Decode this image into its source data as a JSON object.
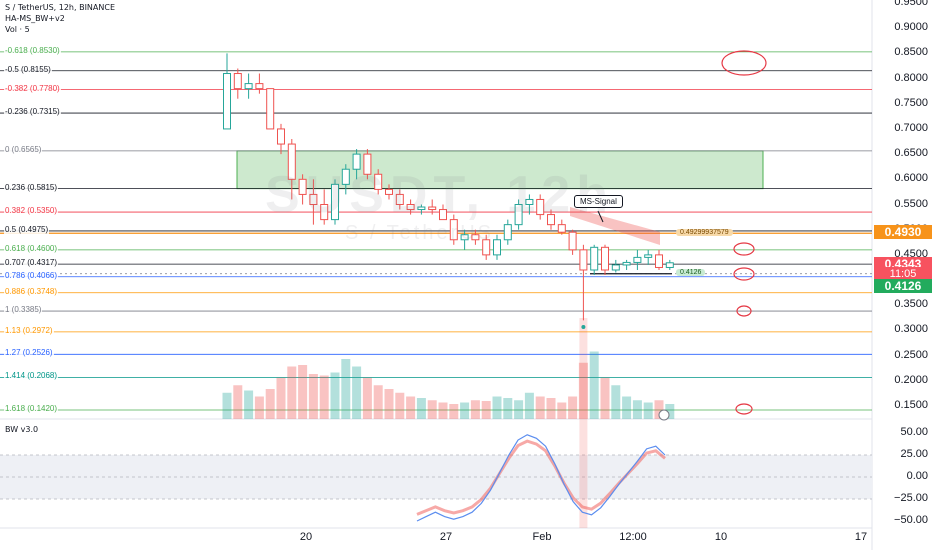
{
  "header": {
    "symbol_line": "S / TetherUS, 12h, BINANCE",
    "indicator1": "HA-MS_BW+v2",
    "indicator2": "Vol · 5",
    "sub_indicator": "BW v3.0"
  },
  "watermark": {
    "symbol": "SUSDT, 12h",
    "pair": "S / TetherUS"
  },
  "callout": {
    "text": "MS-Signal"
  },
  "line_labels": {
    "upper": "0.49299937579",
    "lower": "0.4126"
  },
  "fib_levels": [
    {
      "label": "-0.618 (0.8530)",
      "value": 0.853,
      "color": "#4caf50"
    },
    {
      "label": "-0.5 (0.8155)",
      "value": 0.8155,
      "color": "#131722"
    },
    {
      "label": "-0.382 (0.7780)",
      "value": 0.778,
      "color": "#f23645"
    },
    {
      "label": "-0.236 (0.7315)",
      "value": 0.7315,
      "color": "#131722"
    },
    {
      "label": "0 (0.6565)",
      "value": 0.6565,
      "color": "#787b86"
    },
    {
      "label": "0.236 (0.5815)",
      "value": 0.5815,
      "color": "#131722"
    },
    {
      "label": "0.382 (0.5350)",
      "value": 0.535,
      "color": "#f23645"
    },
    {
      "label": "0.5 (0.4975)",
      "value": 0.4975,
      "color": "#131722"
    },
    {
      "label": "0.618 (0.4600)",
      "value": 0.46,
      "color": "#4caf50"
    },
    {
      "label": "0.707 (0.4317)",
      "value": 0.4317,
      "color": "#131722"
    },
    {
      "label": "0.786 (0.4066)",
      "value": 0.4066,
      "color": "#2962ff"
    },
    {
      "label": "0.886 (0.3748)",
      "value": 0.3748,
      "color": "#ff9800"
    },
    {
      "label": "1 (0.3385)",
      "value": 0.3385,
      "color": "#787b86"
    },
    {
      "label": "1.13 (0.2972)",
      "value": 0.2972,
      "color": "#ff9800"
    },
    {
      "label": "1.27 (0.2526)",
      "value": 0.2526,
      "color": "#2962ff"
    },
    {
      "label": "1.414 (0.2068)",
      "value": 0.2068,
      "color": "#009688"
    },
    {
      "label": "1.618 (0.1420)",
      "value": 0.142,
      "color": "#4caf50"
    }
  ],
  "price_axis": {
    "ticks": [
      "0.9500",
      "0.9000",
      "0.8500",
      "0.8000",
      "0.7500",
      "0.7000",
      "0.6500",
      "0.6000",
      "0.5500",
      "0.5000",
      "0.4500",
      "0.4000",
      "0.3500",
      "0.3000",
      "0.2500",
      "0.2000",
      "0.1500"
    ],
    "tags": {
      "orange": "0.4930",
      "red_price": "0.4343",
      "red_time": "11:05",
      "green": "0.4126"
    }
  },
  "osc_axis": {
    "ticks": [
      "50.00",
      "25.00",
      "0.00",
      "−25.00",
      "−50.00"
    ]
  },
  "time_axis": {
    "ticks": [
      "20",
      "27",
      "Feb",
      "12:00",
      "10",
      "17"
    ]
  },
  "colors": {
    "up": "#26a69a",
    "down": "#ef5350",
    "zone": "#4caf50",
    "accent": "#f7931a"
  },
  "chart_data": {
    "type": "candlestick",
    "interval": "12h",
    "ylim": [
      0.1,
      0.95
    ],
    "candles": [
      {
        "o": 0.7,
        "h": 0.85,
        "l": 0.7,
        "c": 0.81
      },
      {
        "o": 0.81,
        "h": 0.82,
        "l": 0.76,
        "c": 0.78
      },
      {
        "o": 0.78,
        "h": 0.81,
        "l": 0.76,
        "c": 0.79
      },
      {
        "o": 0.79,
        "h": 0.81,
        "l": 0.77,
        "c": 0.78
      },
      {
        "o": 0.78,
        "h": 0.78,
        "l": 0.7,
        "c": 0.7
      },
      {
        "o": 0.7,
        "h": 0.71,
        "l": 0.65,
        "c": 0.67
      },
      {
        "o": 0.67,
        "h": 0.68,
        "l": 0.56,
        "c": 0.6
      },
      {
        "o": 0.6,
        "h": 0.61,
        "l": 0.55,
        "c": 0.57
      },
      {
        "o": 0.57,
        "h": 0.6,
        "l": 0.51,
        "c": 0.55
      },
      {
        "o": 0.55,
        "h": 0.58,
        "l": 0.51,
        "c": 0.52
      },
      {
        "o": 0.52,
        "h": 0.6,
        "l": 0.51,
        "c": 0.59
      },
      {
        "o": 0.59,
        "h": 0.63,
        "l": 0.57,
        "c": 0.62
      },
      {
        "o": 0.62,
        "h": 0.66,
        "l": 0.6,
        "c": 0.65
      },
      {
        "o": 0.65,
        "h": 0.66,
        "l": 0.6,
        "c": 0.61
      },
      {
        "o": 0.61,
        "h": 0.62,
        "l": 0.57,
        "c": 0.58
      },
      {
        "o": 0.58,
        "h": 0.59,
        "l": 0.56,
        "c": 0.57
      },
      {
        "o": 0.57,
        "h": 0.58,
        "l": 0.54,
        "c": 0.55
      },
      {
        "o": 0.55,
        "h": 0.56,
        "l": 0.53,
        "c": 0.54
      },
      {
        "o": 0.54,
        "h": 0.55,
        "l": 0.53,
        "c": 0.545
      },
      {
        "o": 0.545,
        "h": 0.56,
        "l": 0.53,
        "c": 0.54
      },
      {
        "o": 0.54,
        "h": 0.55,
        "l": 0.52,
        "c": 0.52
      },
      {
        "o": 0.52,
        "h": 0.53,
        "l": 0.47,
        "c": 0.48
      },
      {
        "o": 0.48,
        "h": 0.5,
        "l": 0.46,
        "c": 0.49
      },
      {
        "o": 0.49,
        "h": 0.5,
        "l": 0.47,
        "c": 0.48
      },
      {
        "o": 0.48,
        "h": 0.49,
        "l": 0.44,
        "c": 0.45
      },
      {
        "o": 0.45,
        "h": 0.49,
        "l": 0.44,
        "c": 0.48
      },
      {
        "o": 0.48,
        "h": 0.52,
        "l": 0.47,
        "c": 0.51
      },
      {
        "o": 0.51,
        "h": 0.56,
        "l": 0.5,
        "c": 0.55
      },
      {
        "o": 0.55,
        "h": 0.57,
        "l": 0.53,
        "c": 0.56
      },
      {
        "o": 0.56,
        "h": 0.57,
        "l": 0.52,
        "c": 0.53
      },
      {
        "o": 0.53,
        "h": 0.54,
        "l": 0.5,
        "c": 0.51
      },
      {
        "o": 0.51,
        "h": 0.52,
        "l": 0.49,
        "c": 0.495
      },
      {
        "o": 0.495,
        "h": 0.5,
        "l": 0.45,
        "c": 0.46
      },
      {
        "o": 0.46,
        "h": 0.47,
        "l": 0.32,
        "c": 0.42
      },
      {
        "o": 0.42,
        "h": 0.47,
        "l": 0.41,
        "c": 0.465
      },
      {
        "o": 0.465,
        "h": 0.47,
        "l": 0.41,
        "c": 0.42
      },
      {
        "o": 0.42,
        "h": 0.44,
        "l": 0.415,
        "c": 0.43
      },
      {
        "o": 0.43,
        "h": 0.44,
        "l": 0.42,
        "c": 0.435
      },
      {
        "o": 0.435,
        "h": 0.46,
        "l": 0.42,
        "c": 0.445
      },
      {
        "o": 0.445,
        "h": 0.46,
        "l": 0.43,
        "c": 0.45
      },
      {
        "o": 0.45,
        "h": 0.46,
        "l": 0.42,
        "c": 0.425
      },
      {
        "o": 0.425,
        "h": 0.44,
        "l": 0.42,
        "c": 0.4343
      }
    ],
    "volume": [
      0.35,
      0.45,
      0.38,
      0.3,
      0.4,
      0.55,
      0.7,
      0.72,
      0.6,
      0.58,
      0.62,
      0.8,
      0.7,
      0.55,
      0.45,
      0.4,
      0.35,
      0.3,
      0.28,
      0.25,
      0.22,
      0.2,
      0.22,
      0.25,
      0.24,
      0.3,
      0.28,
      0.25,
      0.35,
      0.3,
      0.28,
      0.22,
      0.3,
      0.75,
      0.9,
      0.55,
      0.45,
      0.3,
      0.25,
      0.22,
      0.25,
      0.2
    ],
    "oscillator": {
      "name": "BW v3.0",
      "ylim": [
        -55,
        55
      ],
      "values": [
        -50,
        -45,
        -40,
        -45,
        -48,
        -45,
        -40,
        -30,
        -15,
        5,
        25,
        42,
        48,
        44,
        35,
        15,
        -8,
        -28,
        -40,
        -43,
        -35,
        -22,
        -8,
        5,
        18,
        32,
        35,
        25
      ]
    }
  }
}
